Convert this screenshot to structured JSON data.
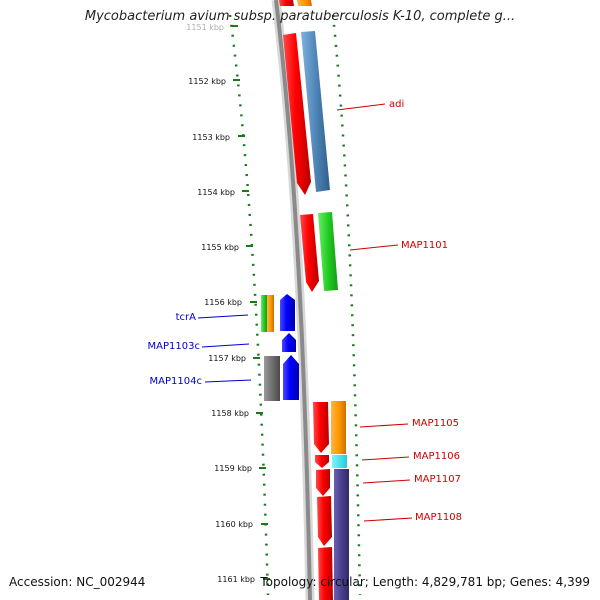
{
  "title": "Mycobacterium avium subsp. paratuberculosis K-10, complete g...",
  "accession": "Accession: NC_002944",
  "summary": "Topology: circular; Length: 4,829,781 bp; Genes: 4,399",
  "colors": {
    "backbone": "#8a8a8a",
    "tick": "#1a7a1a",
    "forward_label": "#cc0000",
    "reverse_label": "#0000cc"
  },
  "ticks": [
    {
      "label": "1151 kbp"
    },
    {
      "label": "1152 kbp"
    },
    {
      "label": "1153 kbp"
    },
    {
      "label": "1154 kbp"
    },
    {
      "label": "1155 kbp"
    },
    {
      "label": "1156 kbp"
    },
    {
      "label": "1157 kbp"
    },
    {
      "label": "1158 kbp"
    },
    {
      "label": "1159 kbp"
    },
    {
      "label": "1160 kbp"
    },
    {
      "label": "1161 kbp"
    }
  ],
  "genes": [
    {
      "label": "adi",
      "strand": "forward",
      "color": "#ff0000",
      "cog_color": "#4f86b8"
    },
    {
      "label": "MAP1101",
      "strand": "forward",
      "color": "#ff0000",
      "cog_color": "#33cc33"
    },
    {
      "label": "tcrA",
      "strand": "reverse",
      "color": "#0000ff",
      "cog_color": "#33cc33"
    },
    {
      "label": "MAP1103c",
      "strand": "reverse",
      "color": "#0000ff",
      "cog_color": ""
    },
    {
      "label": "MAP1104c",
      "strand": "reverse",
      "color": "#0000ff",
      "cog_color": "#707070"
    },
    {
      "label": "MAP1105",
      "strand": "forward",
      "color": "#ff0000",
      "cog_color": "#ff9900"
    },
    {
      "label": "MAP1106",
      "strand": "forward",
      "color": "#ff0000",
      "cog_color": "#33ddee"
    },
    {
      "label": "MAP1107",
      "strand": "forward",
      "color": "#ff0000",
      "cog_color": "#4a3f8c"
    },
    {
      "label": "MAP1108",
      "strand": "forward",
      "color": "#ff0000",
      "cog_color": "#4a3f8c"
    }
  ]
}
